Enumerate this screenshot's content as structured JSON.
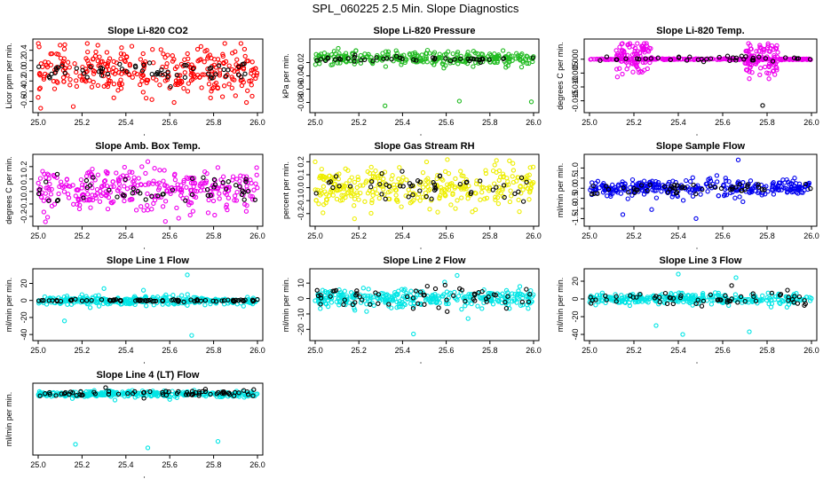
{
  "figure_title": "SPL_060225  2.5 Min. Slope Diagnostics",
  "chart_data": [
    {
      "type": "scatter",
      "title": "Slope Li-820 CO2",
      "ylabel": "Licor ppm per min.",
      "xlim": [
        25.0,
        26.0
      ],
      "ylim": [
        -0.75,
        0.55
      ],
      "x_ticks": [
        "25.0",
        "25.2",
        "25.4",
        "25.6",
        "25.8",
        "26.0"
      ],
      "y_ticks": [
        -0.6,
        -0.4,
        -0.2,
        0.0,
        0.2,
        0.4
      ],
      "y_tick_labels": [
        "-0.6",
        "-0.4",
        "-0.2",
        "0.0",
        "0.2",
        "0.4"
      ],
      "color": "#ff0000",
      "series": [
        {
          "name": "all",
          "color": "#ff0000",
          "center": 0.0,
          "spread": 0.22,
          "count": 320,
          "points": [
            {
              "x": 25.0,
              "y": -0.52
            },
            {
              "x": 25.1,
              "y": 0.5
            },
            {
              "x": 25.16,
              "y": -0.7
            },
            {
              "x": 25.38,
              "y": 0.45
            },
            {
              "x": 25.62,
              "y": -0.62
            },
            {
              "x": 25.95,
              "y": -0.62
            }
          ]
        },
        {
          "name": "subset",
          "color": "#000000",
          "center": -0.02,
          "spread": 0.1,
          "count": 60,
          "points": []
        }
      ]
    },
    {
      "type": "scatter",
      "title": "Slope Li-820 Pressure",
      "ylabel": "kPa per min.",
      "xlim": [
        25.0,
        26.0
      ],
      "ylim": [
        -0.09,
        0.01
      ],
      "x_ticks": [
        "25.0",
        "25.2",
        "25.4",
        "25.6",
        "25.8",
        "26.0"
      ],
      "y_ticks": [
        -0.08,
        -0.06,
        -0.04,
        -0.02
      ],
      "y_tick_labels": [
        "-0.08",
        "-0.06",
        "-0.04",
        "-0.02"
      ],
      "color": "#00cc00",
      "series": [
        {
          "name": "all",
          "color": "#22bb22",
          "center": -0.014,
          "spread": 0.005,
          "count": 300,
          "points": [
            {
              "x": 25.32,
              "y": -0.085
            },
            {
              "x": 25.66,
              "y": -0.078
            },
            {
              "x": 25.99,
              "y": -0.079
            }
          ]
        },
        {
          "name": "subset",
          "color": "#000000",
          "center": -0.015,
          "spread": 0.002,
          "count": 45,
          "points": []
        }
      ]
    },
    {
      "type": "scatter",
      "title": "Slope Li-820 Temp.",
      "ylabel": "degrees C per min.",
      "xlim": [
        25.0,
        26.0
      ],
      "ylim": [
        -0.018,
        0.006
      ],
      "x_ticks": [
        "25.0",
        "25.2",
        "25.4",
        "25.6",
        "25.8",
        "26.0"
      ],
      "y_ticks": [
        -0.015,
        -0.01,
        -0.005,
        0.0
      ],
      "y_tick_labels": [
        "-0.015",
        "-0.010",
        "-0.005",
        "0.000"
      ],
      "color": "#ee00ee",
      "series": [
        {
          "name": "all",
          "color": "#ee00ee",
          "center": 0.0,
          "spread": 0.0001,
          "count": 250,
          "clusters": [
            {
              "x0": 25.12,
              "x1": 25.28,
              "spread": 0.0035,
              "count": 90
            },
            {
              "x0": 25.7,
              "x1": 25.85,
              "spread": 0.0035,
              "count": 90
            }
          ],
          "points": []
        },
        {
          "name": "subset",
          "color": "#000000",
          "center": 0.0,
          "spread": 0.0005,
          "count": 40,
          "points": [
            {
              "x": 25.78,
              "y": -0.0167
            }
          ]
        }
      ]
    },
    {
      "type": "scatter",
      "title": "Slope Amb. Box Temp.",
      "ylabel": "degrees C per min.",
      "xlim": [
        25.0,
        26.0
      ],
      "ylim": [
        -0.25,
        0.27
      ],
      "x_ticks": [
        "25.0",
        "25.2",
        "25.4",
        "25.6",
        "25.8",
        "26.0"
      ],
      "y_ticks": [
        -0.2,
        -0.1,
        0.0,
        0.1,
        0.2
      ],
      "y_tick_labels": [
        "-0.2",
        "-0.1",
        "0.0",
        "0.1",
        "0.2"
      ],
      "color": "#ee00ee",
      "series": [
        {
          "name": "all",
          "color": "#ee00ee",
          "center": 0.02,
          "spread": 0.08,
          "count": 320,
          "points": [
            {
              "x": 25.5,
              "y": 0.24
            },
            {
              "x": 25.58,
              "y": -0.24
            }
          ]
        },
        {
          "name": "subset",
          "color": "#000000",
          "center": 0.0,
          "spread": 0.06,
          "count": 50,
          "points": []
        }
      ]
    },
    {
      "type": "scatter",
      "title": "Slope Gas Stream RH",
      "ylabel": "percent per min.",
      "xlim": [
        25.0,
        26.0
      ],
      "ylim": [
        -0.27,
        0.23
      ],
      "x_ticks": [
        "25.0",
        "25.2",
        "25.4",
        "25.6",
        "25.8",
        "26.0"
      ],
      "y_ticks": [
        -0.2,
        -0.1,
        0.0,
        0.1,
        0.2
      ],
      "y_tick_labels": [
        "-0.2",
        "-0.1",
        "0.0",
        "0.1",
        "0.2"
      ],
      "color": "#ffff00",
      "series": [
        {
          "name": "all",
          "color": "#eeee00",
          "center": 0.0,
          "spread": 0.08,
          "count": 320,
          "points": [
            {
              "x": 25.0,
              "y": 0.2
            },
            {
              "x": 25.83,
              "y": 0.21
            },
            {
              "x": 25.18,
              "y": -0.24
            }
          ]
        },
        {
          "name": "subset",
          "color": "#000000",
          "center": 0.0,
          "spread": 0.06,
          "count": 50,
          "points": []
        }
      ]
    },
    {
      "type": "scatter",
      "title": "Slope Sample Flow",
      "ylabel": "ml/min per min.",
      "xlim": [
        25.0,
        26.0
      ],
      "ylim": [
        -1.7,
        1.5
      ],
      "x_ticks": [
        "25.0",
        "25.2",
        "25.4",
        "25.6",
        "25.8",
        "26.0"
      ],
      "y_ticks": [
        -1.5,
        -1.0,
        -0.5,
        0.0,
        0.5,
        1.0
      ],
      "y_tick_labels": [
        "-1.5",
        "-1.0",
        "-0.5",
        "0.0",
        "0.5",
        "1.0"
      ],
      "color": "#0000ee",
      "series": [
        {
          "name": "all",
          "color": "#0000ee",
          "center": 0.0,
          "spread": 0.2,
          "count": 320,
          "points": [
            {
              "x": 25.67,
              "y": 1.4
            },
            {
              "x": 25.15,
              "y": -1.3
            },
            {
              "x": 25.48,
              "y": -1.5
            },
            {
              "x": 25.28,
              "y": -1.05
            }
          ]
        },
        {
          "name": "subset",
          "color": "#000000",
          "center": 0.0,
          "spread": 0.15,
          "count": 50,
          "points": []
        }
      ]
    },
    {
      "type": "scatter",
      "title": "Slope Line 1 Flow",
      "ylabel": "ml/min per min.",
      "xlim": [
        25.0,
        26.0
      ],
      "ylim": [
        -43,
        33
      ],
      "x_ticks": [
        "25.0",
        "25.2",
        "25.4",
        "25.6",
        "25.8",
        "26.0"
      ],
      "y_ticks": [
        -40,
        -20,
        0,
        20
      ],
      "y_tick_labels": [
        "-40",
        "-20",
        "0",
        "20"
      ],
      "color": "#00ffff",
      "series": [
        {
          "name": "all",
          "color": "#00e5e5",
          "center": 0.0,
          "spread": 2.5,
          "count": 320,
          "points": [
            {
              "x": 25.68,
              "y": 30
            },
            {
              "x": 25.7,
              "y": -41
            },
            {
              "x": 25.3,
              "y": 14
            },
            {
              "x": 25.12,
              "y": -24
            },
            {
              "x": 25.48,
              "y": 12
            }
          ]
        },
        {
          "name": "subset",
          "color": "#000000",
          "center": 0.0,
          "spread": 0.6,
          "count": 80,
          "points": []
        }
      ]
    },
    {
      "type": "scatter",
      "title": "Slope Line 2 Flow",
      "ylabel": "ml/min per min.",
      "xlim": [
        25.0,
        26.0
      ],
      "ylim": [
        -25,
        17
      ],
      "x_ticks": [
        "25.0",
        "25.2",
        "25.4",
        "25.6",
        "25.8",
        "26.0"
      ],
      "y_ticks": [
        -20,
        -10,
        0,
        10
      ],
      "y_tick_labels": [
        "-20",
        "-10",
        "0",
        "10"
      ],
      "color": "#00ffff",
      "series": [
        {
          "name": "all",
          "color": "#00e5e5",
          "center": 0.0,
          "spread": 3.0,
          "count": 320,
          "points": [
            {
              "x": 25.45,
              "y": -23
            },
            {
              "x": 25.65,
              "y": 15
            },
            {
              "x": 25.7,
              "y": -13
            }
          ]
        },
        {
          "name": "subset",
          "color": "#000000",
          "center": 0.0,
          "spread": 3.5,
          "count": 60,
          "points": []
        }
      ]
    },
    {
      "type": "scatter",
      "title": "Slope Line 3 Flow",
      "ylabel": "ml/min per min.",
      "xlim": [
        25.0,
        26.0
      ],
      "ylim": [
        -43,
        30
      ],
      "x_ticks": [
        "25.0",
        "25.2",
        "25.4",
        "25.6",
        "25.8",
        "26.0"
      ],
      "y_ticks": [
        -40,
        -20,
        0,
        20
      ],
      "y_tick_labels": [
        "-40",
        "-20",
        "0",
        "20"
      ],
      "color": "#00ffff",
      "series": [
        {
          "name": "all",
          "color": "#00e5e5",
          "center": 0.0,
          "spread": 3.0,
          "count": 320,
          "points": [
            {
              "x": 25.42,
              "y": -40
            },
            {
              "x": 25.72,
              "y": -37
            },
            {
              "x": 25.4,
              "y": 28
            },
            {
              "x": 25.3,
              "y": -30
            },
            {
              "x": 25.66,
              "y": 24
            }
          ]
        },
        {
          "name": "subset",
          "color": "#000000",
          "center": 0.0,
          "spread": 4.0,
          "count": 60,
          "points": []
        }
      ]
    },
    {
      "type": "scatter",
      "title": "Slope Line 4 (LT) Flow",
      "ylabel": "ml/min per min.",
      "xlim": [
        25.0,
        26.0
      ],
      "ylim": [
        -1.65,
        0.15
      ],
      "x_ticks": [
        "25.0",
        "25.2",
        "25.4",
        "25.6",
        "25.8",
        "26.0"
      ],
      "y_ticks": [],
      "y_tick_labels": [],
      "color": "#00ffff",
      "series": [
        {
          "name": "all",
          "color": "#00e5e5",
          "center": -0.05,
          "spread": 0.04,
          "count": 340,
          "points": [
            {
              "x": 25.17,
              "y": -1.45
            },
            {
              "x": 25.82,
              "y": -1.37
            },
            {
              "x": 25.5,
              "y": -1.55
            },
            {
              "x": 25.35,
              "y": -0.22
            },
            {
              "x": 25.6,
              "y": -0.2
            }
          ]
        },
        {
          "name": "subset",
          "color": "#000000",
          "center": -0.03,
          "spread": 0.05,
          "count": 70,
          "points": []
        }
      ]
    }
  ]
}
